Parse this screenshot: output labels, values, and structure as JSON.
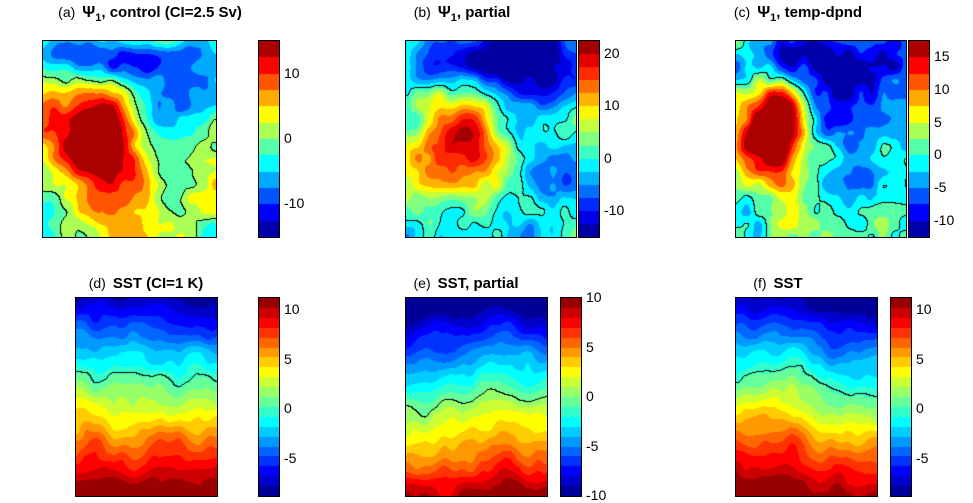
{
  "figure": {
    "background": "#ffffff",
    "colormap": "jet",
    "zero_contour_color": "#000000"
  },
  "chart_data": {
    "type": "heatmap",
    "subtype": "filled-contour",
    "colormap": "jet",
    "layout": "2 rows x 3 columns; each panel is a filled contour map (no axis ticks) with a vertical colorbar on its right; the zero contour is drawn as a black line",
    "panels": [
      {
        "id": "a",
        "label": "(a)",
        "title_sym": "Ψ",
        "title_sub": "1",
        "title_rest": ", control (CI=2.5 Sv)",
        "units": "Sv",
        "contour_interval": 2.5,
        "colorbar": {
          "min": -15,
          "max": 15,
          "ticks": [
            10,
            0,
            -10
          ]
        },
        "pattern": "turbulent eddy field: strong positive (red/orange) anomaly over the left-center, negative (blue) anomalies along the top and right edges, black zero contour"
      },
      {
        "id": "b",
        "label": "(b)",
        "title_sym": "Ψ",
        "title_sub": "1",
        "title_rest": ", partial",
        "units": "Sv",
        "contour_interval": 2.5,
        "colorbar": {
          "min": -15,
          "max": 22.5,
          "ticks": [
            20,
            10,
            0,
            -10
          ]
        },
        "pattern": "turbulent eddy field: positive (red) core left of center, broad negative (blue) region across the top, black zero contour"
      },
      {
        "id": "c",
        "label": "(c)",
        "title_sym": "Ψ",
        "title_sub": "1",
        "title_rest": ", temp-dpnd",
        "units": "Sv",
        "contour_interval": 2.5,
        "colorbar": {
          "min": -12.5,
          "max": 17.5,
          "ticks": [
            15,
            10,
            5,
            0,
            -5,
            -10
          ]
        },
        "pattern": "strong compact positive (red) anomaly at mid-left, negative (blue) band along the top, right half near zero (green/teal) with many wiggly black zero contours"
      },
      {
        "id": "d",
        "label": "(d)",
        "title_sym": "",
        "title_sub": "",
        "title_rest": "SST (CI=1 K)",
        "units": "K",
        "contour_interval": 1,
        "colorbar": {
          "min": -8.75,
          "max": 11.25,
          "ticks": [
            10,
            5,
            0,
            -5
          ]
        },
        "pattern": "meridional SST gradient: cold (dark blue) in the north, warm (dark red) in the south, wiggly black zero-isotherm front near 40% from the top"
      },
      {
        "id": "e",
        "label": "(e)",
        "title_sym": "",
        "title_sub": "",
        "title_rest": "SST, partial",
        "units": "K",
        "contour_interval": 1,
        "colorbar": {
          "min": -10,
          "max": 10,
          "ticks": [
            10,
            5,
            0,
            -5,
            -10
          ]
        },
        "pattern": "meridional SST gradient: cold (blue) north, warm (red) south, wiggly black zero-isotherm front near mid-basin"
      },
      {
        "id": "f",
        "label": "(f)",
        "title_sym": "",
        "title_sub": "",
        "title_rest": "SST",
        "units": "K",
        "contour_interval": 1,
        "colorbar": {
          "min": -8.75,
          "max": 11.25,
          "ticks": [
            10,
            5,
            0,
            -5
          ]
        },
        "pattern": "meridional SST gradient: cold (dark blue) north, warm (dark red) south, smoother wiggly black zero-isotherm front near 40% from the top"
      }
    ]
  }
}
